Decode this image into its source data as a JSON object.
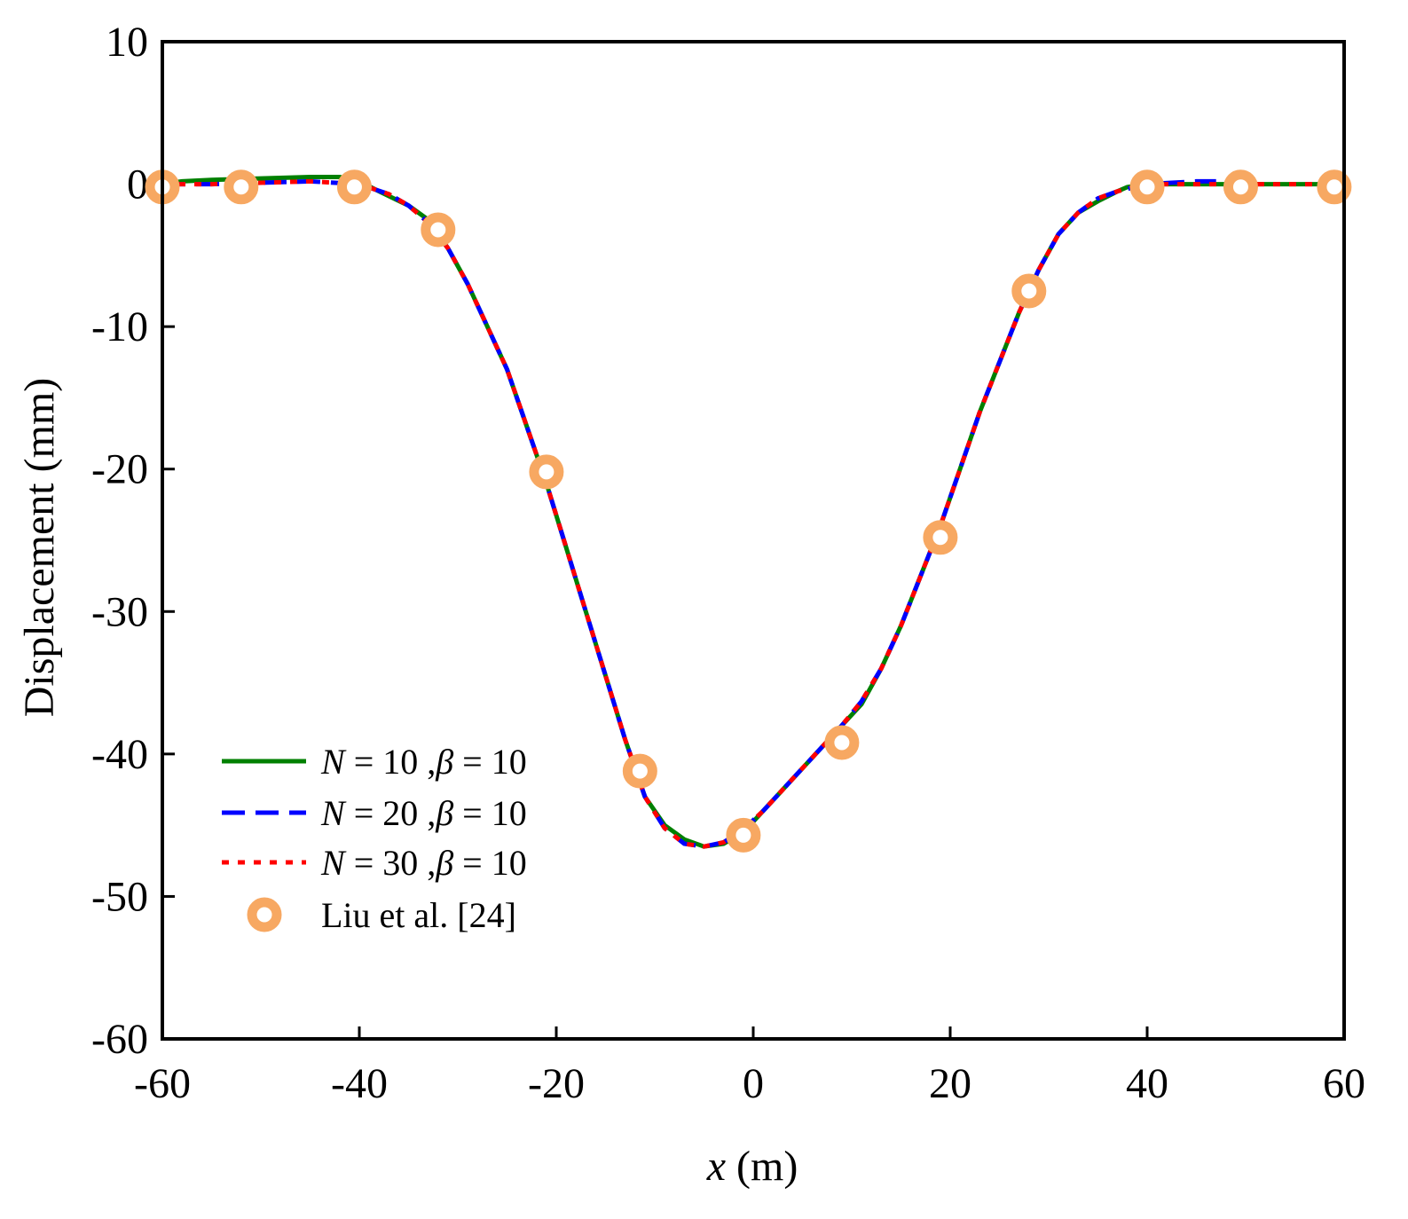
{
  "chart_data": {
    "type": "line",
    "title": "",
    "xlabel_var": "x",
    "xlabel_unit": "(m)",
    "ylabel": "Displacement (mm)",
    "xlim": [
      -60,
      60
    ],
    "ylim": [
      -60,
      10
    ],
    "xticks": [
      -60,
      -40,
      -20,
      0,
      20,
      40,
      60
    ],
    "yticks": [
      10,
      0,
      -10,
      -20,
      -30,
      -40,
      -50,
      -60
    ],
    "grid": false,
    "legend_position": "bottom-left",
    "series": [
      {
        "name": "N = 10 ,β = 10",
        "legend_var": "N",
        "legend_n": "10",
        "legend_beta_var": "β",
        "legend_beta": "10",
        "color": "#008000",
        "style": "solid",
        "x": [
          -60,
          -58,
          -55,
          -50,
          -45,
          -42,
          -40,
          -38,
          -35,
          -33,
          -31,
          -29,
          -27,
          -25,
          -23,
          -21,
          -19,
          -17,
          -15,
          -13,
          -11,
          -9,
          -7,
          -5,
          -3,
          -1,
          1,
          3,
          5,
          7,
          9,
          11,
          13,
          15,
          17,
          19,
          21,
          23,
          25,
          27,
          29,
          31,
          33,
          35,
          37,
          38,
          40,
          45,
          50,
          55,
          60
        ],
        "y": [
          0,
          0.2,
          0.3,
          0.4,
          0.5,
          0.5,
          0.2,
          -0.5,
          -1.5,
          -2.5,
          -4.5,
          -7,
          -10,
          -13,
          -17,
          -21,
          -25.5,
          -30,
          -34.5,
          -39,
          -43,
          -45,
          -46,
          -46.5,
          -46.3,
          -45.5,
          -44,
          -42.5,
          -41,
          -39.5,
          -38,
          -36.5,
          -34,
          -31,
          -27.5,
          -24,
          -20,
          -16,
          -12.5,
          -9,
          -6,
          -3.5,
          -2,
          -1.2,
          -0.5,
          -0.2,
          0,
          0,
          0,
          0,
          0
        ]
      },
      {
        "name": "N = 20 ,β = 10",
        "legend_var": "N",
        "legend_n": "20",
        "legend_beta_var": "β",
        "legend_beta": "10",
        "color": "#0000FF",
        "style": "dashed",
        "x": [
          -60,
          -55,
          -50,
          -45,
          -40,
          -37,
          -35,
          -33,
          -31,
          -29,
          -27,
          -25,
          -23,
          -21,
          -19,
          -17,
          -15,
          -13,
          -11,
          -9,
          -7,
          -5,
          -3,
          -1,
          1,
          3,
          5,
          7,
          9,
          11,
          13,
          15,
          17,
          19,
          21,
          23,
          25,
          27,
          29,
          31,
          33,
          35,
          37,
          40,
          45,
          47
        ],
        "y": [
          0,
          0,
          0.1,
          0.2,
          0,
          -0.7,
          -1.5,
          -2.7,
          -4.5,
          -7,
          -10,
          -13,
          -17,
          -21,
          -25.5,
          -30,
          -34.5,
          -39,
          -43,
          -45.2,
          -46.3,
          -46.5,
          -46.2,
          -45.3,
          -44,
          -42.5,
          -41,
          -39.5,
          -38,
          -36.3,
          -34,
          -31,
          -27.5,
          -24,
          -20,
          -16,
          -12.5,
          -9,
          -6,
          -3.5,
          -2,
          -1,
          -0.5,
          0,
          0.2,
          0.2
        ]
      },
      {
        "name": "N = 30 ,β = 10",
        "legend_var": "N",
        "legend_n": "30",
        "legend_beta_var": "β",
        "legend_beta": "10",
        "color": "#FF0000",
        "style": "dotted",
        "x": [
          -60,
          -55,
          -50,
          -45,
          -40,
          -37,
          -35,
          -33,
          -31,
          -29,
          -27,
          -25,
          -23,
          -21,
          -19,
          -17,
          -15,
          -13,
          -11,
          -9,
          -7,
          -5,
          -3,
          -1,
          1,
          3,
          5,
          7,
          9,
          11,
          13,
          15,
          17,
          19,
          21,
          23,
          25,
          27,
          29,
          31,
          33,
          35,
          37,
          40,
          45,
          50,
          55,
          60
        ],
        "y": [
          0,
          0,
          0.1,
          0.2,
          0,
          -0.7,
          -1.5,
          -2.7,
          -4.5,
          -7,
          -10,
          -13,
          -17,
          -21,
          -25.5,
          -30,
          -34.5,
          -39,
          -43,
          -45.2,
          -46.3,
          -46.5,
          -46.2,
          -45.3,
          -44,
          -42.5,
          -41,
          -39.5,
          -38,
          -36.3,
          -34,
          -31,
          -27.5,
          -24,
          -20,
          -16,
          -12.5,
          -9,
          -6,
          -3.5,
          -2,
          -1,
          -0.5,
          0,
          0,
          0,
          0,
          0
        ]
      },
      {
        "name": "Liu et al. [24]",
        "color": "#F7A862",
        "style": "markers",
        "x": [
          -60,
          -52,
          -40.5,
          -32,
          -21,
          -11.5,
          -1,
          9,
          19,
          28,
          40,
          49.5,
          59
        ],
        "y": [
          -0.2,
          -0.2,
          -0.2,
          -3.2,
          -20.2,
          -41.2,
          -45.7,
          -39.2,
          -24.8,
          -7.5,
          -0.2,
          -0.2,
          -0.2
        ]
      }
    ]
  }
}
